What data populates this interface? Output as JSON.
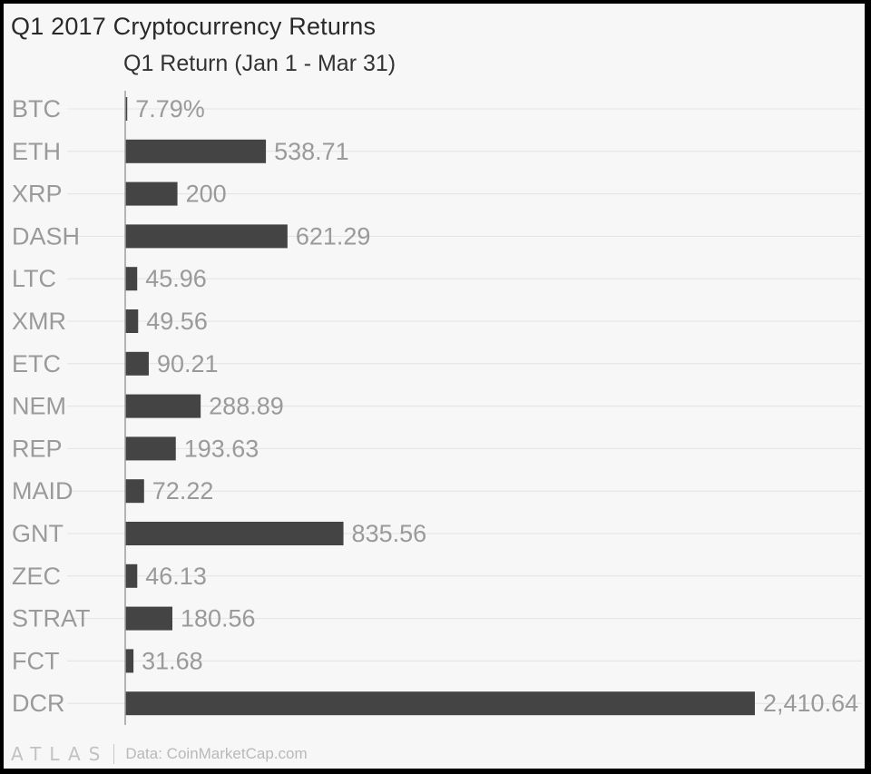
{
  "chart_data": {
    "type": "bar",
    "orientation": "horizontal",
    "title": "Q1 2017 Cryptocurrency Returns",
    "series": [
      {
        "name": "Q1 Return (Jan 1 - Mar 31)"
      }
    ],
    "categories": [
      "BTC",
      "ETH",
      "XRP",
      "DASH",
      "LTC",
      "XMR",
      "ETC",
      "NEM",
      "REP",
      "MAID",
      "GNT",
      "ZEC",
      "STRAT",
      "FCT",
      "DCR"
    ],
    "values": [
      7.79,
      538.71,
      200,
      621.29,
      45.96,
      49.56,
      90.21,
      288.89,
      193.63,
      72.22,
      835.56,
      46.13,
      180.56,
      31.68,
      2410.64
    ],
    "value_labels": [
      "7.79%",
      "538.71",
      "200",
      "621.29",
      "45.96",
      "49.56",
      "90.21",
      "288.89",
      "193.63",
      "72.22",
      "835.56",
      "46.13",
      "180.56",
      "31.68",
      "2,410.64"
    ],
    "xlim": [
      0,
      2410.64
    ],
    "grid": true,
    "legend": "none",
    "colors": {
      "bar": "#444444",
      "label": "#9a9a9a",
      "grid": "#e4e4e4",
      "axis": "#9e9e9e"
    }
  },
  "footer": {
    "logo": "ATLAS",
    "source": "Data: CoinMarketCap.com"
  }
}
